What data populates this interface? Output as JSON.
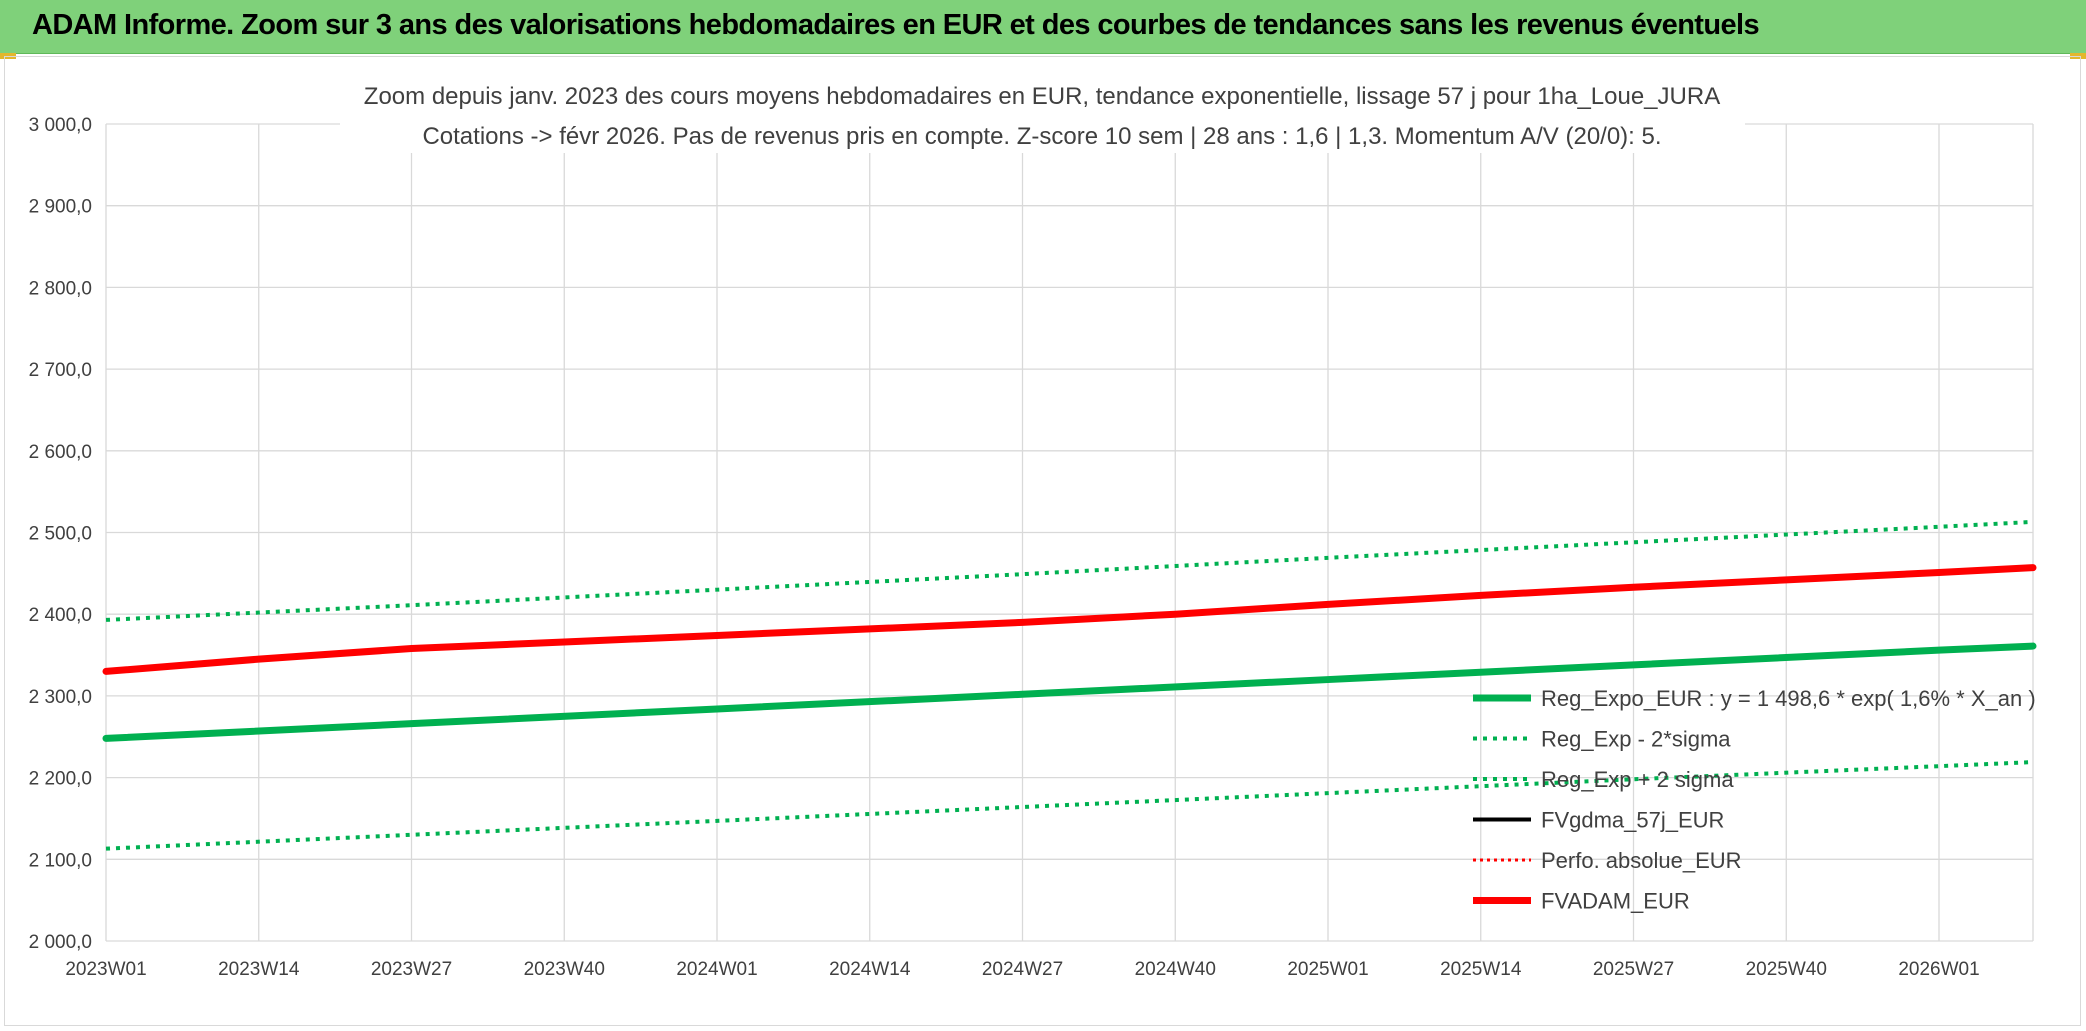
{
  "header": {
    "title": "ADAM Informe. Zoom sur 3 ans des valorisations hebdomadaires en EUR et des courbes de tendances sans les revenus éventuels"
  },
  "chart_data": {
    "type": "line",
    "title_line1": "Zoom depuis janv. 2023 des cours moyens hebdomadaires en EUR, tendance exponentielle, lissage 57 j pour 1ha_Loue_JURA",
    "title_line2": "Cotations -> févr 2026. Pas de revenus pris en compte. Z-score 10 sem | 28 ans : 1,6 | 1,3. Momentum A/V (20/0): 5.",
    "xlabel": "",
    "ylabel": "",
    "ylim": [
      2000,
      3000
    ],
    "yticks": [
      "3 000,0",
      "2 900,0",
      "2 800,0",
      "2 700,0",
      "2 600,0",
      "2 500,0",
      "2 400,0",
      "2 300,0",
      "2 200,0",
      "2 100,0",
      "2 000,0"
    ],
    "x_categories": [
      "2023W01",
      "2023W14",
      "2023W27",
      "2023W40",
      "2024W01",
      "2024W14",
      "2024W27",
      "2024W40",
      "2025W01",
      "2025W14",
      "2025W27",
      "2025W40",
      "2026W01"
    ],
    "x_range_weeks": [
      0,
      164
    ],
    "grid": true,
    "legend_position": "right",
    "series": [
      {
        "name": "Reg_Expo_EUR : y = 1 498,6 * exp( 1,6% *  X_an )",
        "color": "#00b050",
        "style": "solid-thick",
        "x": [
          0,
          26,
          52,
          78,
          104,
          130,
          156,
          164
        ],
        "y": [
          2248,
          2266,
          2284,
          2302,
          2320,
          2338,
          2356,
          2361
        ]
      },
      {
        "name": "Reg_Exp - 2*sigma",
        "color": "#00b050",
        "style": "dotted",
        "x": [
          0,
          26,
          52,
          78,
          104,
          130,
          156,
          164
        ],
        "y": [
          2113,
          2130,
          2147,
          2164,
          2181,
          2198,
          2214,
          2219
        ]
      },
      {
        "name": "Reg_Exp + 2 sigma",
        "color": "#00b050",
        "style": "dotted",
        "x": [
          0,
          26,
          52,
          78,
          104,
          130,
          156,
          164
        ],
        "y": [
          2393,
          2411,
          2430,
          2449,
          2469,
          2488,
          2507,
          2513
        ]
      },
      {
        "name": "FVgdma_57j_EUR",
        "color": "#000000",
        "style": "solid",
        "x": [],
        "y": []
      },
      {
        "name": "Perfo. absolue_EUR",
        "color": "#ff0000",
        "style": "dotted-thin",
        "x": [],
        "y": []
      },
      {
        "name": "FVADAM_EUR",
        "color": "#ff0000",
        "style": "solid-thick",
        "x": [
          0,
          13,
          26,
          39,
          52,
          65,
          78,
          91,
          104,
          117,
          130,
          143,
          156,
          164
        ],
        "y": [
          2330,
          2345,
          2358,
          2366,
          2374,
          2382,
          2390,
          2400,
          2412,
          2423,
          2433,
          2442,
          2451,
          2457
        ]
      }
    ]
  }
}
